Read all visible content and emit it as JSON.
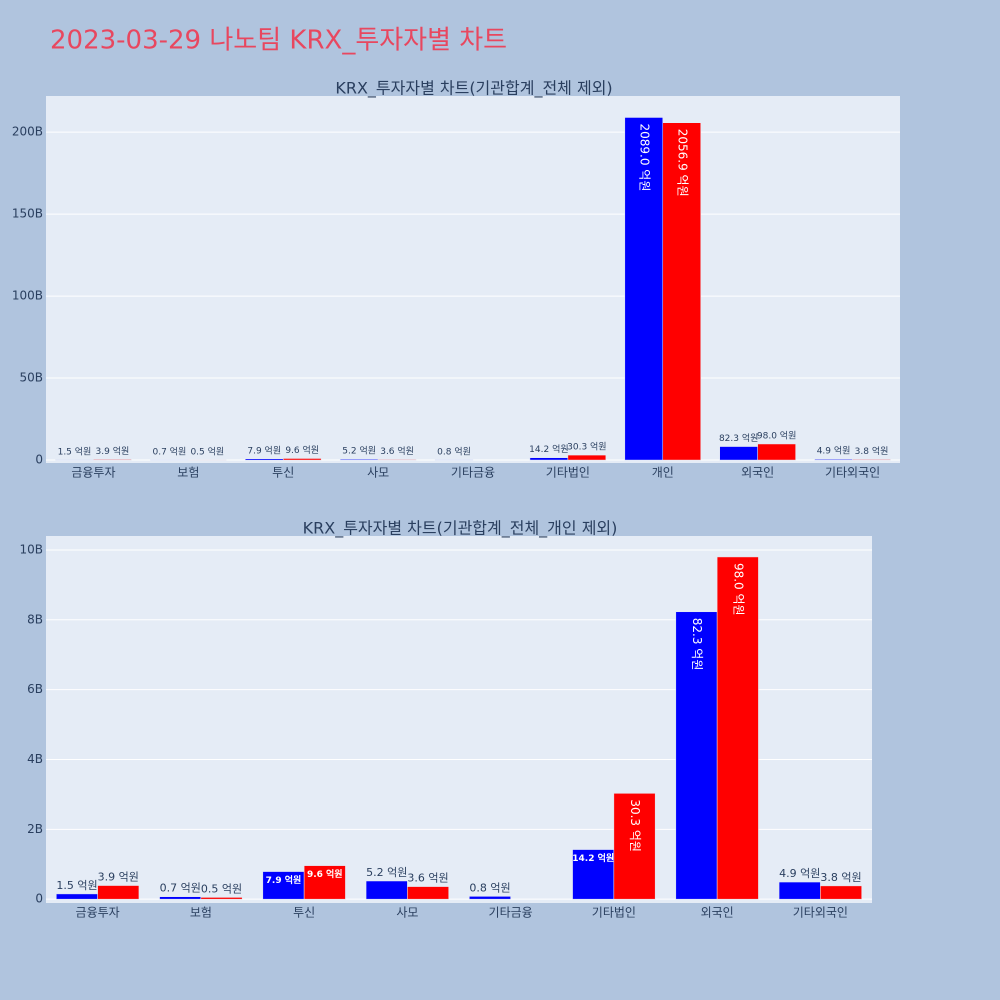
{
  "title": "2023-03-29 나노팀 KRX_투자자별 차트",
  "chart_data": [
    {
      "type": "bar",
      "title": "KRX_투자자별 차트(기관합계_전체 제외)",
      "categories": [
        "금융투자",
        "보험",
        "투신",
        "사모",
        "기타금융",
        "기타법인",
        "개인",
        "외국인",
        "기타외국인"
      ],
      "series": [
        {
          "color": "#0000ff",
          "values": [
            150000000,
            70000000,
            790000000,
            520000000,
            80000000,
            1420000000,
            208900000000,
            8230000000,
            490000000
          ],
          "value_labels": [
            "1.5 억원",
            "0.7 억원",
            "7.9 억원",
            "5.2 억원",
            "0.8 억원",
            "14.2 억원",
            "2089.0 억원",
            "82.3 억원",
            "4.9 억원"
          ]
        },
        {
          "color": "#ff0000",
          "values": [
            390000000,
            50000000,
            960000000,
            360000000,
            null,
            3030000000,
            205690000000,
            9800000000,
            380000000
          ],
          "value_labels": [
            "3.9 억원",
            "0.5 억원",
            "9.6 억원",
            "3.6 억원",
            null,
            "30.3 억원",
            "2056.9 억원",
            "98.0 억원",
            "3.8 억원"
          ]
        }
      ],
      "ylim": [
        -1800000000,
        222000000000
      ],
      "yticks": [
        0,
        {
          "value": 50000000000,
          "label": "50B"
        },
        {
          "value": 100000000000,
          "label": "100B"
        },
        {
          "value": 150000000000,
          "label": "150B"
        },
        {
          "value": 200000000000,
          "label": "200B"
        }
      ],
      "grid": true
    },
    {
      "type": "bar",
      "title": "KRX_투자자별 차트(기관합계_전체_개인 제외)",
      "categories": [
        "금융투자",
        "보험",
        "투신",
        "사모",
        "기타금융",
        "기타법인",
        "외국인",
        "기타외국인"
      ],
      "series": [
        {
          "color": "#0000ff",
          "values": [
            150000000,
            70000000,
            790000000,
            520000000,
            80000000,
            1420000000,
            8230000000,
            490000000
          ],
          "value_labels": [
            "1.5 억원",
            "0.7 억원",
            "7.9 억원",
            "5.2 억원",
            "0.8 억원",
            "14.2 억원",
            "82.3 억원",
            "4.9 억원"
          ]
        },
        {
          "color": "#ff0000",
          "values": [
            390000000,
            50000000,
            960000000,
            360000000,
            null,
            3030000000,
            9800000000,
            380000000
          ],
          "value_labels": [
            "3.9 억원",
            "0.5 억원",
            "9.6 억원",
            "3.6 억원",
            null,
            "30.3 억원",
            "98.0 억원",
            "3.8 억원"
          ]
        }
      ],
      "ylim": [
        -110000000,
        10400000000
      ],
      "yticks": [
        0,
        {
          "value": 2000000000,
          "label": "2B"
        },
        {
          "value": 4000000000,
          "label": "4B"
        },
        {
          "value": 6000000000,
          "label": "6B"
        },
        {
          "value": 8000000000,
          "label": "8B"
        },
        {
          "value": 10000000000,
          "label": "10B"
        }
      ],
      "grid": true
    }
  ]
}
